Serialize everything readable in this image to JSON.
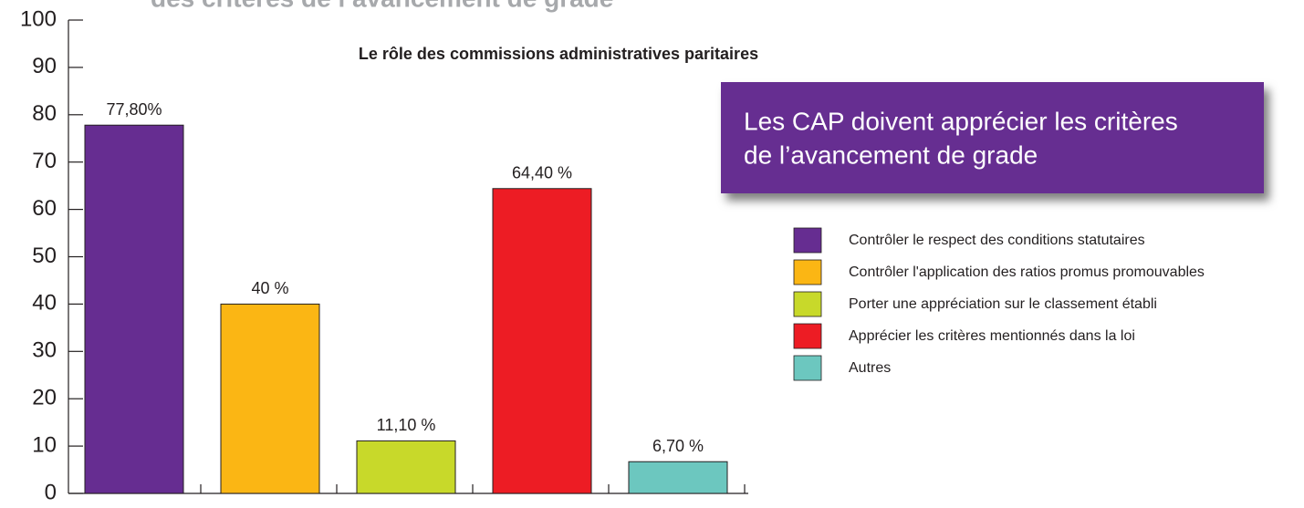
{
  "chart_data": {
    "type": "bar",
    "header": "des critères de l’avancement de grade",
    "title": "Le rôle des commissions administratives paritaires",
    "callout": [
      "Les CAP doivent apprécier les critères",
      "de l’avancement de grade"
    ],
    "categories": [
      "Contrôler le respect des conditions statutaires",
      "Contrôler l'application des ratios promus promouvables",
      "Porter une appréciation sur le classement établi",
      "Apprécier les critères mentionnés dans la loi",
      "Autres"
    ],
    "values": [
      77.8,
      40,
      11.1,
      64.4,
      6.7
    ],
    "value_labels": [
      "77,80%",
      "40 %",
      "11,10 %",
      "64,40 %",
      "6,70 %"
    ],
    "colors": [
      "#662d91",
      "#fbb614",
      "#c8d92a",
      "#ed1c24",
      "#6cc7bf"
    ],
    "ylim": [
      0,
      100
    ],
    "yticks": [
      0,
      10,
      20,
      30,
      40,
      50,
      60,
      70,
      80,
      90,
      100
    ],
    "legend": "right"
  }
}
